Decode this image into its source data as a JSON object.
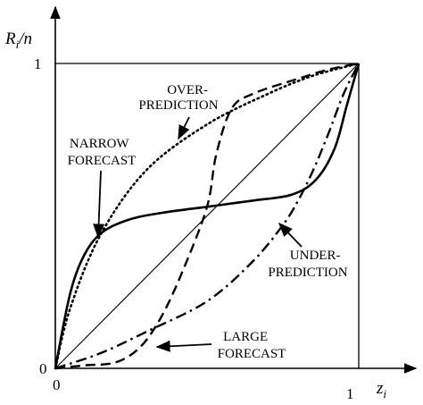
{
  "chart_data": {
    "type": "line",
    "xlabel": "z",
    "xlabel_sub": "i",
    "ylabel_main": "R",
    "ylabel_sub": "i",
    "ylabel_rest": "/n",
    "xlim": [
      0,
      1
    ],
    "ylim": [
      0,
      1
    ],
    "x_ticks": [
      "0",
      "1"
    ],
    "y_ticks": [
      "0",
      "1"
    ],
    "grid": false,
    "series": [
      {
        "key": "diagonal",
        "style": "solid-thin",
        "x": [
          0,
          1
        ],
        "y": [
          0,
          1
        ]
      },
      {
        "key": "narrow",
        "style": "solid",
        "x": [
          0,
          0.05,
          0.1,
          0.16,
          0.25,
          0.35,
          0.5,
          0.65,
          0.78,
          0.86,
          0.92,
          0.96,
          1
        ],
        "y": [
          0,
          0.25,
          0.38,
          0.45,
          0.49,
          0.51,
          0.53,
          0.55,
          0.57,
          0.62,
          0.72,
          0.86,
          1
        ]
      },
      {
        "key": "large",
        "style": "dashed",
        "x": [
          0,
          0.1,
          0.2,
          0.28,
          0.35,
          0.42,
          0.5,
          0.53,
          0.58,
          0.65,
          0.8,
          0.9,
          1
        ],
        "y": [
          0,
          0.01,
          0.02,
          0.07,
          0.17,
          0.32,
          0.53,
          0.7,
          0.85,
          0.9,
          0.95,
          0.98,
          1
        ]
      },
      {
        "key": "over",
        "style": "dotted",
        "x": [
          0,
          0.05,
          0.15,
          0.3,
          0.5,
          0.7,
          0.85,
          1
        ],
        "y": [
          0,
          0.2,
          0.44,
          0.65,
          0.8,
          0.9,
          0.96,
          1
        ]
      },
      {
        "key": "under",
        "style": "dashdot",
        "x": [
          0,
          0.15,
          0.3,
          0.5,
          0.65,
          0.75,
          0.8,
          0.85,
          0.9,
          0.95,
          1
        ],
        "y": [
          0,
          0.05,
          0.12,
          0.22,
          0.35,
          0.47,
          0.55,
          0.65,
          0.77,
          0.9,
          1
        ]
      }
    ],
    "annotations": [
      {
        "key": "over",
        "lines": [
          "OVER-",
          "PREDICTION"
        ]
      },
      {
        "key": "narrow",
        "lines": [
          "NARROW",
          "FORECAST"
        ]
      },
      {
        "key": "under",
        "lines": [
          "UNDER-",
          "PREDICTION"
        ]
      },
      {
        "key": "large",
        "lines": [
          "LARGE",
          "FORECAST"
        ]
      }
    ]
  }
}
